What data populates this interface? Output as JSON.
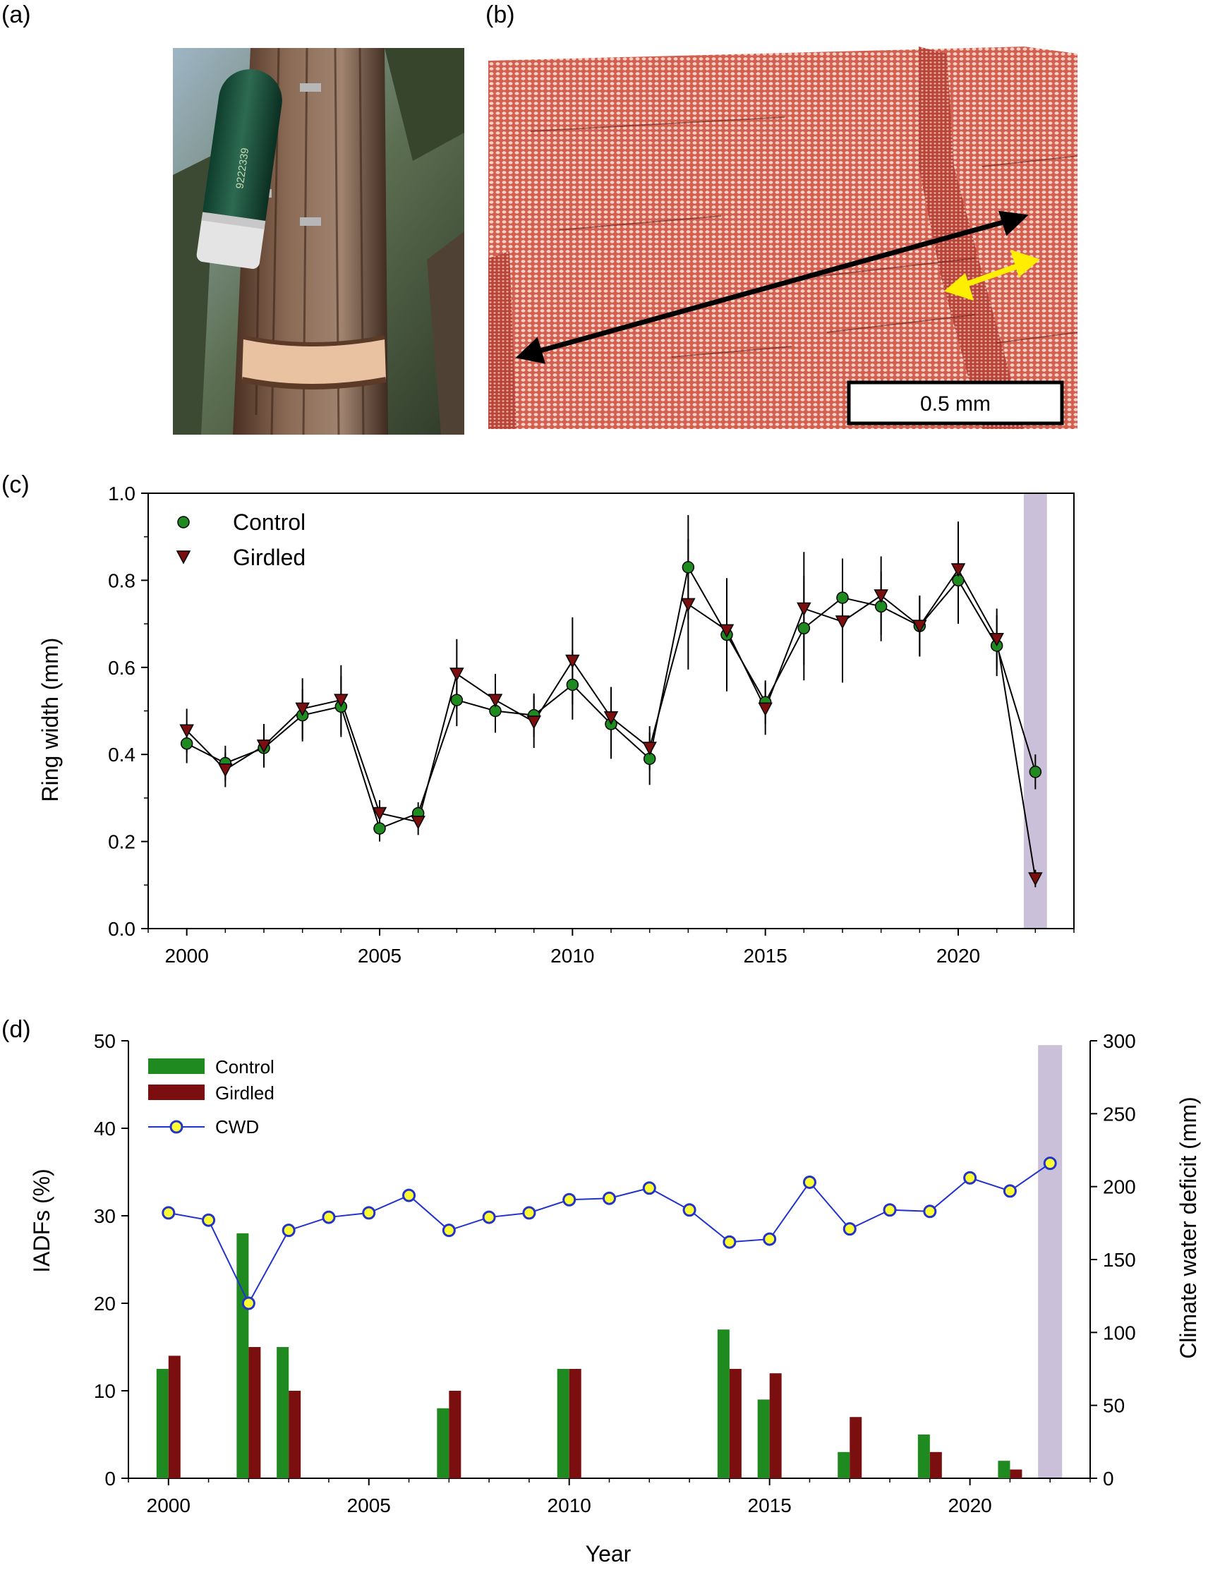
{
  "panels": {
    "a": {
      "label": "(a)",
      "serial": "9222339"
    },
    "b": {
      "label": "(b)",
      "scalebar": "0.5 mm"
    },
    "c": {
      "label": "(c)"
    },
    "d": {
      "label": "(d)"
    }
  },
  "colors": {
    "control": "#1f8a1f",
    "girdled": "#7b0f0f",
    "cwd_line": "#2233cc",
    "cwd_marker": "#ffff33",
    "highlight": "#cbc0da",
    "wood": "#d9685a"
  },
  "chart_data": [
    {
      "type": "line",
      "panel": "c",
      "ylabel": "Ring width (mm)",
      "xlabel": "",
      "xlim": [
        1999,
        2023
      ],
      "ylim": [
        0,
        1.0
      ],
      "xticks": [
        "2000",
        "2005",
        "2010",
        "2015",
        "2020"
      ],
      "yticks": [
        "0.0",
        "0.2",
        "0.4",
        "0.6",
        "0.8",
        "1.0"
      ],
      "legend": "top-left",
      "highlight_year": 2022,
      "x": [
        2000,
        2001,
        2002,
        2003,
        2004,
        2005,
        2006,
        2007,
        2008,
        2009,
        2010,
        2011,
        2012,
        2013,
        2014,
        2015,
        2016,
        2017,
        2018,
        2019,
        2020,
        2021,
        2022
      ],
      "series": [
        {
          "name": "Control",
          "marker": "circle",
          "values": [
            0.425,
            0.38,
            0.415,
            0.49,
            0.51,
            0.23,
            0.265,
            0.525,
            0.5,
            0.49,
            0.56,
            0.47,
            0.39,
            0.83,
            0.675,
            0.52,
            0.69,
            0.76,
            0.74,
            0.695,
            0.8,
            0.65,
            0.36
          ],
          "err": [
            0.045,
            0.04,
            0.045,
            0.06,
            0.07,
            0.03,
            0.025,
            0.06,
            0.05,
            0.05,
            0.08,
            0.08,
            0.06,
            0.12,
            0.13,
            0.05,
            0.12,
            0.09,
            0.08,
            0.07,
            0.1,
            0.07,
            0.04
          ]
        },
        {
          "name": "Girdled",
          "marker": "triangle-down",
          "values": [
            0.455,
            0.365,
            0.42,
            0.505,
            0.525,
            0.265,
            0.245,
            0.585,
            0.525,
            0.475,
            0.615,
            0.485,
            0.415,
            0.745,
            0.685,
            0.505,
            0.735,
            0.705,
            0.765,
            0.695,
            0.825,
            0.665,
            0.115
          ],
          "err": [
            0.05,
            0.04,
            0.05,
            0.07,
            0.08,
            0.03,
            0.03,
            0.08,
            0.06,
            0.06,
            0.1,
            0.07,
            0.05,
            0.15,
            0.12,
            0.06,
            0.13,
            0.14,
            0.09,
            0.07,
            0.11,
            0.07,
            0.02
          ]
        }
      ]
    },
    {
      "type": "bar",
      "panel": "d",
      "xlabel": "Year",
      "ylabel": "IADFs (%)",
      "y2label": "Climate water deficit (mm)",
      "xlim": [
        1999,
        2023
      ],
      "ylim": [
        0,
        50
      ],
      "y2lim": [
        0,
        300
      ],
      "xticks": [
        "2000",
        "2005",
        "2010",
        "2015",
        "2020"
      ],
      "yticks": [
        "0",
        "10",
        "20",
        "30",
        "40",
        "50"
      ],
      "y2ticks": [
        "0",
        "50",
        "100",
        "150",
        "200",
        "250",
        "300"
      ],
      "legend": "top-left",
      "highlight_year": 2022,
      "x": [
        2000,
        2001,
        2002,
        2003,
        2004,
        2005,
        2006,
        2007,
        2008,
        2009,
        2010,
        2011,
        2012,
        2013,
        2014,
        2015,
        2016,
        2017,
        2018,
        2019,
        2020,
        2021,
        2022
      ],
      "series": [
        {
          "name": "Control",
          "kind": "bar",
          "values": [
            12.5,
            0,
            28,
            15,
            0,
            0,
            0,
            8,
            0,
            0,
            12.5,
            0,
            0,
            0,
            17,
            9,
            0,
            3,
            0,
            5,
            0,
            2,
            0
          ]
        },
        {
          "name": "Girdled",
          "kind": "bar",
          "values": [
            14,
            0,
            15,
            10,
            0,
            0,
            0,
            10,
            0,
            0,
            12.5,
            0,
            0,
            0,
            12.5,
            12,
            0,
            7,
            0,
            3,
            0,
            1,
            0
          ]
        },
        {
          "name": "CWD",
          "kind": "line",
          "axis": "right",
          "values": [
            182,
            177,
            120,
            170,
            179,
            182,
            194,
            170,
            179,
            182,
            191,
            192,
            199,
            184,
            162,
            164,
            203,
            171,
            184,
            183,
            206,
            197,
            216
          ]
        }
      ]
    }
  ]
}
